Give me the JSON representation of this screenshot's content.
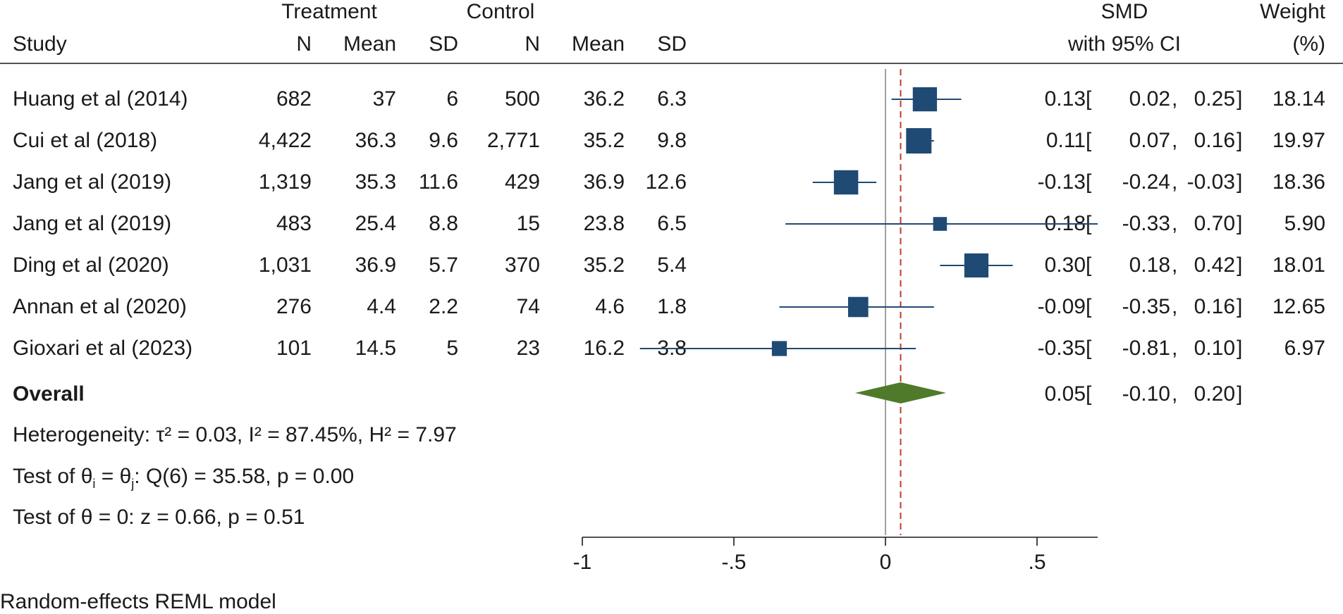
{
  "headers": {
    "treatment_group": "Treatment",
    "control_group": "Control",
    "study": "Study",
    "t_n": "N",
    "t_mean": "Mean",
    "t_sd": "SD",
    "c_n": "N",
    "c_mean": "Mean",
    "c_sd": "SD",
    "smd_line1": "SMD",
    "smd_line2": "with 95% CI",
    "weight_line1": "Weight",
    "weight_line2": "(%)"
  },
  "studies": [
    {
      "name": "Huang et al (2014)",
      "t_n": "682",
      "t_mean": "37",
      "t_sd": "6",
      "c_n": "500",
      "c_mean": "36.2",
      "c_sd": "6.3",
      "smd": "0.13",
      "lo": "0.02",
      "hi": "0.25",
      "weight": "18.14"
    },
    {
      "name": "Cui et al (2018)",
      "t_n": "4,422",
      "t_mean": "36.3",
      "t_sd": "9.6",
      "c_n": "2,771",
      "c_mean": "35.2",
      "c_sd": "9.8",
      "smd": "0.11",
      "lo": "0.07",
      "hi": "0.16",
      "weight": "19.97"
    },
    {
      "name": "Jang et al (2019)",
      "t_n": "1,319",
      "t_mean": "35.3",
      "t_sd": "11.6",
      "c_n": "429",
      "c_mean": "36.9",
      "c_sd": "12.6",
      "smd": "-0.13",
      "lo": "-0.24",
      "hi": "-0.03",
      "weight": "18.36"
    },
    {
      "name": "Jang et al (2019)",
      "t_n": "483",
      "t_mean": "25.4",
      "t_sd": "8.8",
      "c_n": "15",
      "c_mean": "23.8",
      "c_sd": "6.5",
      "smd": "0.18",
      "lo": "-0.33",
      "hi": "0.70",
      "weight": "5.90"
    },
    {
      "name": "Ding et al (2020)",
      "t_n": "1,031",
      "t_mean": "36.9",
      "t_sd": "5.7",
      "c_n": "370",
      "c_mean": "35.2",
      "c_sd": "5.4",
      "smd": "0.30",
      "lo": "0.18",
      "hi": "0.42",
      "weight": "18.01"
    },
    {
      "name": "Annan et al (2020)",
      "t_n": "276",
      "t_mean": "4.4",
      "t_sd": "2.2",
      "c_n": "74",
      "c_mean": "4.6",
      "c_sd": "1.8",
      "smd": "-0.09",
      "lo": "-0.35",
      "hi": "0.16",
      "weight": "12.65"
    },
    {
      "name": "Gioxari et al (2023)",
      "t_n": "101",
      "t_mean": "14.5",
      "t_sd": "5",
      "c_n": "23",
      "c_mean": "16.2",
      "c_sd": "3.8",
      "smd": "-0.35",
      "lo": "-0.81",
      "hi": "0.10",
      "weight": "6.97"
    }
  ],
  "overall": {
    "label": "Overall",
    "smd": "0.05",
    "lo": "-0.10",
    "hi": "0.20"
  },
  "stats": {
    "heterogeneity": "Heterogeneity: τ² = 0.03, I² = 87.45%, H² = 7.97",
    "test_homogeneity_prefix": "Test of θ",
    "sub_i": "i",
    "eq": " = θ",
    "sub_j": "j",
    "test_homogeneity_suffix": ": Q(6) = 35.58, p = 0.00",
    "test_overall": "Test of θ = 0: z = 0.66, p = 0.51"
  },
  "footer": "Random-effects REML model",
  "colors": {
    "marker": "#1f4a73",
    "diamond": "#4f7a2a",
    "ref_line": "#c0392b",
    "zero_line": "#888888",
    "text": "#1a1a1a"
  },
  "chart_data": {
    "type": "forest",
    "title": "",
    "xlabel": "",
    "ylabel": "",
    "xlim": [
      -1,
      0.7
    ],
    "ticks": [
      -1,
      -0.5,
      0,
      0.5
    ],
    "tick_labels": [
      "-1",
      "-.5",
      "0",
      ".5"
    ],
    "reference_line": 0.05,
    "studies": [
      {
        "name": "Huang et al (2014)",
        "smd": 0.13,
        "lo": 0.02,
        "hi": 0.25,
        "weight": 18.14
      },
      {
        "name": "Cui et al (2018)",
        "smd": 0.11,
        "lo": 0.07,
        "hi": 0.16,
        "weight": 19.97
      },
      {
        "name": "Jang et al (2019)",
        "smd": -0.13,
        "lo": -0.24,
        "hi": -0.03,
        "weight": 18.36
      },
      {
        "name": "Jang et al (2019)",
        "smd": 0.18,
        "lo": -0.33,
        "hi": 0.7,
        "weight": 5.9
      },
      {
        "name": "Ding et al (2020)",
        "smd": 0.3,
        "lo": 0.18,
        "hi": 0.42,
        "weight": 18.01
      },
      {
        "name": "Annan et al (2020)",
        "smd": -0.09,
        "lo": -0.35,
        "hi": 0.16,
        "weight": 12.65
      },
      {
        "name": "Gioxari et al (2023)",
        "smd": -0.35,
        "lo": -0.81,
        "hi": 0.1,
        "weight": 6.97
      }
    ],
    "overall": {
      "smd": 0.05,
      "lo": -0.1,
      "hi": 0.2
    }
  }
}
